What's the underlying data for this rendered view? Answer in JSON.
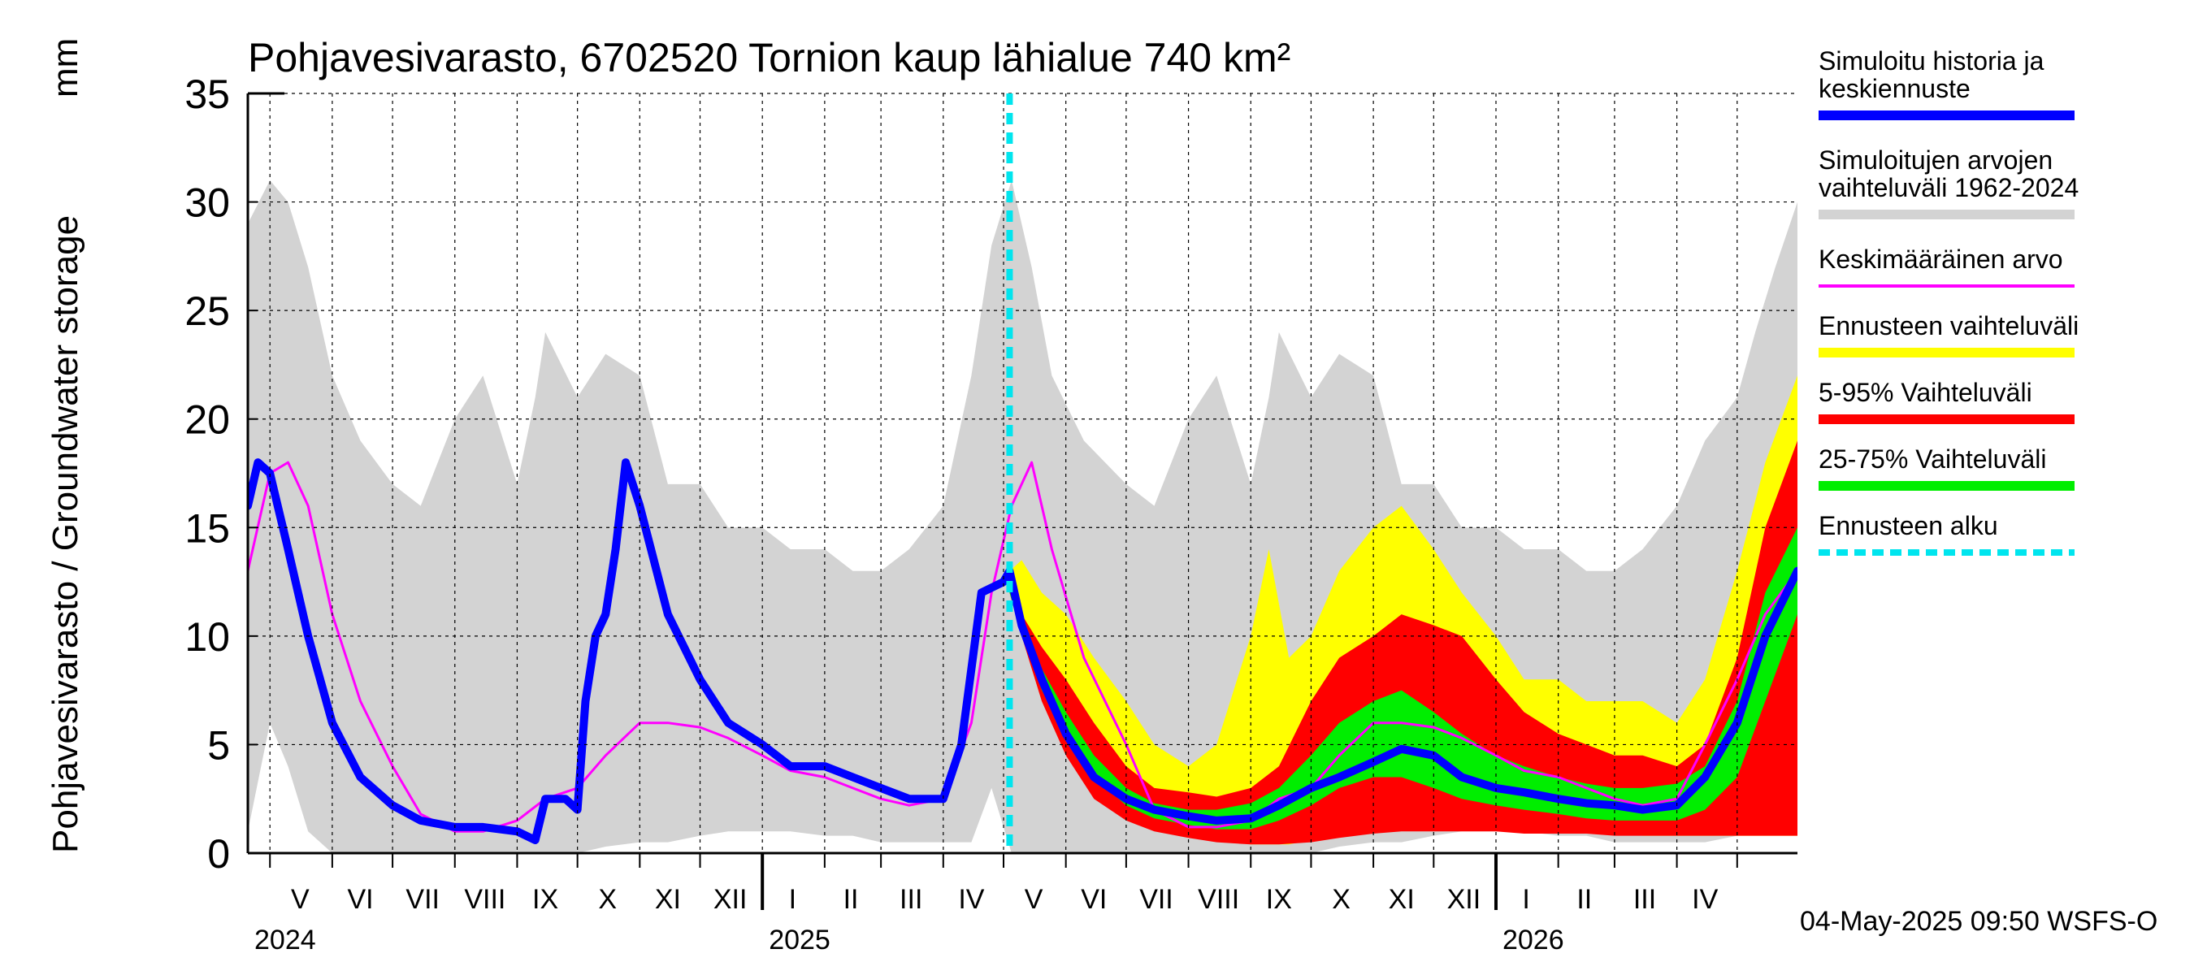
{
  "chart_data": {
    "type": "area",
    "title": "Pohjavesivarasto, 6702520 Tornion kaup lähialue 740 km²",
    "ylabel": "Pohjavesivarasto / Groundwater storage",
    "yunit": "mm",
    "ylim": [
      0,
      35
    ],
    "yticks": [
      "0",
      "5",
      "10",
      "15",
      "20",
      "25",
      "30",
      "35"
    ],
    "xlim": [
      "2024-04-20",
      "2026-05-31"
    ],
    "grid": true,
    "forecast_start": "2025-05-04",
    "months": [
      {
        "label": "V",
        "mid": "2024-05-16"
      },
      {
        "label": "VI",
        "mid": "2024-06-15"
      },
      {
        "label": "VII",
        "mid": "2024-07-16"
      },
      {
        "label": "VIII",
        "mid": "2024-08-16"
      },
      {
        "label": "IX",
        "mid": "2024-09-15"
      },
      {
        "label": "X",
        "mid": "2024-10-16"
      },
      {
        "label": "XI",
        "mid": "2024-11-15"
      },
      {
        "label": "XII",
        "mid": "2024-12-16"
      },
      {
        "label": "I",
        "mid": "2025-01-16"
      },
      {
        "label": "II",
        "mid": "2025-02-14"
      },
      {
        "label": "III",
        "mid": "2025-03-16"
      },
      {
        "label": "IV",
        "mid": "2025-04-15"
      },
      {
        "label": "V",
        "mid": "2025-05-16"
      },
      {
        "label": "VI",
        "mid": "2025-06-15"
      },
      {
        "label": "VII",
        "mid": "2025-07-16"
      },
      {
        "label": "VIII",
        "mid": "2025-08-16"
      },
      {
        "label": "IX",
        "mid": "2025-09-15"
      },
      {
        "label": "X",
        "mid": "2025-10-16"
      },
      {
        "label": "XI",
        "mid": "2025-11-15"
      },
      {
        "label": "XII",
        "mid": "2025-12-16"
      },
      {
        "label": "I",
        "mid": "2026-01-16"
      },
      {
        "label": "II",
        "mid": "2026-02-14"
      },
      {
        "label": "III",
        "mid": "2026-03-16"
      },
      {
        "label": "IV",
        "mid": "2026-04-15"
      }
    ],
    "month_starts": [
      "2024-05-01",
      "2024-06-01",
      "2024-07-01",
      "2024-08-01",
      "2024-09-01",
      "2024-10-01",
      "2024-11-01",
      "2024-12-01",
      "2025-01-01",
      "2025-02-01",
      "2025-03-01",
      "2025-04-01",
      "2025-05-01",
      "2025-06-01",
      "2025-07-01",
      "2025-08-01",
      "2025-09-01",
      "2025-10-01",
      "2025-11-01",
      "2025-12-01",
      "2026-01-01",
      "2026-02-01",
      "2026-03-01",
      "2026-04-01",
      "2026-05-01"
    ],
    "years": [
      {
        "label": "2024",
        "start": "2024-04-20"
      },
      {
        "label": "2025",
        "start": "2025-01-01"
      },
      {
        "label": "2026",
        "start": "2026-01-01"
      }
    ],
    "legend": [
      {
        "label": "Simuloitu historia ja keskiennuste",
        "color": "#0000ff",
        "style": "thick"
      },
      {
        "label": "Simuloitujen arvojen vaihteluväli 1962-2024",
        "color": "#d3d3d3",
        "style": "thick"
      },
      {
        "label": "Keskimääräinen arvo",
        "color": "#ff00ff",
        "style": "thin"
      },
      {
        "label": "Ennusteen vaihteluväli",
        "color": "#ffff00",
        "style": "thick"
      },
      {
        "label": "5-95% Vaihteluväli",
        "color": "#ff0000",
        "style": "thick"
      },
      {
        "label": "25-75% Vaihteluväli",
        "color": "#00ee00",
        "style": "thick"
      },
      {
        "label": "Ennusteen alku",
        "color": "#00e5ee",
        "style": "dashed"
      }
    ],
    "footer": "04-May-2025 09:50 WSFS-O",
    "series": [
      {
        "name": "Simuloitujen arvojen vaihteluväli 1962-2024",
        "kind": "band",
        "color": "#d3d3d3",
        "x": [
          "2024-04-20",
          "2024-05-01",
          "2024-05-10",
          "2024-05-20",
          "2024-06-01",
          "2024-06-15",
          "2024-07-01",
          "2024-07-15",
          "2024-08-01",
          "2024-08-15",
          "2024-09-01",
          "2024-09-10",
          "2024-09-15",
          "2024-10-01",
          "2024-10-15",
          "2024-11-01",
          "2024-11-15",
          "2024-12-01",
          "2024-12-15",
          "2025-01-01",
          "2025-01-15",
          "2025-02-01",
          "2025-02-15",
          "2025-03-01",
          "2025-03-15",
          "2025-04-01",
          "2025-04-15",
          "2025-04-25",
          "2025-05-05",
          "2025-05-15",
          "2025-05-25",
          "2025-06-10",
          "2025-07-01",
          "2025-07-15",
          "2025-08-01",
          "2025-08-15",
          "2025-09-01",
          "2025-09-10",
          "2025-09-15",
          "2025-10-01",
          "2025-10-15",
          "2025-11-01",
          "2025-11-15",
          "2025-12-01",
          "2025-12-15",
          "2026-01-01",
          "2026-01-15",
          "2026-02-01",
          "2026-02-15",
          "2026-03-01",
          "2026-03-15",
          "2026-04-01",
          "2026-04-15",
          "2026-05-01",
          "2026-05-10",
          "2026-05-20",
          "2026-05-31"
        ],
        "upper": [
          29,
          31,
          30,
          27,
          22,
          19,
          17,
          16,
          20,
          22,
          17,
          21,
          24,
          21,
          23,
          22,
          17,
          17,
          15,
          15,
          14,
          14,
          13,
          13,
          14,
          16,
          22,
          28,
          31,
          27,
          22,
          19,
          17,
          16,
          20,
          22,
          17,
          21,
          24,
          21,
          23,
          22,
          17,
          17,
          15,
          15,
          14,
          14,
          13,
          13,
          14,
          16,
          19,
          21,
          24,
          27,
          30
        ],
        "lower": [
          1,
          6,
          4,
          1,
          0,
          0,
          0,
          0,
          0,
          0,
          0,
          0,
          0,
          0,
          0.3,
          0.5,
          0.5,
          0.8,
          1,
          1,
          1,
          0.8,
          0.8,
          0.5,
          0.5,
          0.5,
          0.5,
          3,
          0,
          0,
          0,
          0,
          0,
          0,
          0,
          0,
          0,
          0,
          0,
          0,
          0.3,
          0.5,
          0.5,
          0.8,
          1,
          1,
          1,
          0.8,
          0.8,
          0.5,
          0.5,
          0.5,
          0.5,
          0.8,
          1,
          1.2,
          1.5
        ]
      },
      {
        "name": "Ennusteen vaihteluväli",
        "kind": "band",
        "color": "#ffff00",
        "x": [
          "2025-05-04",
          "2025-05-10",
          "2025-05-20",
          "2025-06-01",
          "2025-06-15",
          "2025-07-01",
          "2025-07-15",
          "2025-08-01",
          "2025-08-15",
          "2025-09-01",
          "2025-09-10",
          "2025-09-20",
          "2025-10-01",
          "2025-10-15",
          "2025-11-01",
          "2025-11-15",
          "2025-12-01",
          "2025-12-15",
          "2026-01-01",
          "2026-01-15",
          "2026-02-01",
          "2026-02-15",
          "2026-03-01",
          "2026-03-15",
          "2026-04-01",
          "2026-04-15",
          "2026-05-01",
          "2026-05-15",
          "2026-05-31"
        ],
        "upper": [
          13,
          13.5,
          12,
          11,
          9,
          7,
          5,
          4,
          5,
          10,
          14,
          9,
          10,
          13,
          15,
          16,
          14,
          12,
          10,
          8,
          8,
          7,
          7,
          7,
          6,
          8,
          13,
          18,
          22
        ],
        "lower": [
          12,
          11,
          8,
          5,
          3,
          2,
          1.2,
          0.8,
          0.6,
          0.4,
          0.4,
          0.4,
          0.6,
          0.8,
          1.0,
          1.2,
          1.2,
          1.2,
          1.2,
          1.0,
          1.0,
          1.0,
          1.0,
          0.8,
          0.8,
          0.8,
          0.8,
          0.8,
          0.8
        ]
      },
      {
        "name": "5-95% Vaihteluväli",
        "kind": "band",
        "color": "#ff0000",
        "x": [
          "2025-05-04",
          "2025-05-10",
          "2025-05-20",
          "2025-06-01",
          "2025-06-15",
          "2025-07-01",
          "2025-07-15",
          "2025-08-01",
          "2025-08-15",
          "2025-09-01",
          "2025-09-15",
          "2025-10-01",
          "2025-10-15",
          "2025-11-01",
          "2025-11-15",
          "2025-12-01",
          "2025-12-15",
          "2026-01-01",
          "2026-01-15",
          "2026-02-01",
          "2026-02-15",
          "2026-03-01",
          "2026-03-15",
          "2026-04-01",
          "2026-04-15",
          "2026-05-01",
          "2026-05-15",
          "2026-05-31"
        ],
        "upper": [
          12.5,
          11,
          9.5,
          8,
          6,
          4,
          3,
          2.8,
          2.6,
          3,
          4,
          7,
          9,
          10,
          11,
          10.5,
          10,
          8,
          6.5,
          5.5,
          5,
          4.5,
          4.5,
          4,
          5,
          9,
          15,
          19
        ],
        "lower": [
          12,
          10,
          7,
          4.5,
          2.5,
          1.5,
          1,
          0.7,
          0.5,
          0.4,
          0.4,
          0.5,
          0.7,
          0.9,
          1.0,
          1.0,
          1.0,
          1.0,
          0.9,
          0.9,
          0.9,
          0.8,
          0.8,
          0.8,
          0.8,
          0.8,
          0.8,
          0.8
        ]
      },
      {
        "name": "25-75% Vaihteluväli",
        "kind": "band",
        "color": "#00ee00",
        "x": [
          "2025-05-04",
          "2025-05-10",
          "2025-05-20",
          "2025-06-01",
          "2025-06-15",
          "2025-07-01",
          "2025-07-15",
          "2025-08-01",
          "2025-08-15",
          "2025-09-01",
          "2025-09-15",
          "2025-10-01",
          "2025-10-15",
          "2025-11-01",
          "2025-11-15",
          "2025-12-01",
          "2025-12-15",
          "2026-01-01",
          "2026-01-15",
          "2026-02-01",
          "2026-02-15",
          "2026-03-01",
          "2026-03-15",
          "2026-04-01",
          "2026-04-15",
          "2026-05-01",
          "2026-05-15",
          "2026-05-31"
        ],
        "upper": [
          12.5,
          10.5,
          8.5,
          6.5,
          4.5,
          3,
          2.3,
          2,
          2,
          2.3,
          3,
          4.5,
          6,
          7,
          7.5,
          6.5,
          5.5,
          4.5,
          4,
          3.5,
          3.2,
          3,
          3,
          3.2,
          4,
          7,
          12,
          15
        ],
        "lower": [
          12,
          10,
          7.5,
          5.5,
          3.5,
          2.2,
          1.6,
          1.3,
          1.1,
          1.1,
          1.5,
          2.2,
          3,
          3.5,
          3.5,
          3,
          2.5,
          2.2,
          2,
          1.8,
          1.6,
          1.5,
          1.5,
          1.5,
          2,
          3.5,
          7,
          11
        ]
      },
      {
        "name": "Keskimääräinen arvo",
        "kind": "line",
        "color": "#ff00ff",
        "width": 3,
        "x": [
          "2024-04-20",
          "2024-05-01",
          "2024-05-10",
          "2024-05-20",
          "2024-06-01",
          "2024-06-15",
          "2024-07-01",
          "2024-07-15",
          "2024-08-01",
          "2024-08-15",
          "2024-09-01",
          "2024-09-15",
          "2024-10-01",
          "2024-10-15",
          "2024-11-01",
          "2024-11-15",
          "2024-12-01",
          "2024-12-15",
          "2025-01-01",
          "2025-01-15",
          "2025-02-01",
          "2025-02-15",
          "2025-03-01",
          "2025-03-15",
          "2025-04-01",
          "2025-04-15",
          "2025-04-25",
          "2025-05-05",
          "2025-05-15",
          "2025-05-25",
          "2025-06-10",
          "2025-07-01",
          "2025-07-15",
          "2025-08-01",
          "2025-08-15",
          "2025-09-01",
          "2025-09-15",
          "2025-10-01",
          "2025-10-15",
          "2025-11-01",
          "2025-11-15",
          "2025-12-01",
          "2025-12-15",
          "2026-01-01",
          "2026-01-15",
          "2026-02-01",
          "2026-02-15",
          "2026-03-01",
          "2026-03-15",
          "2026-04-01",
          "2026-04-15",
          "2026-05-01",
          "2026-05-15",
          "2026-05-31"
        ],
        "y": [
          13,
          17.5,
          18,
          16,
          11,
          7,
          4,
          1.8,
          1.0,
          1.0,
          1.5,
          2.5,
          3.0,
          4.5,
          6.0,
          6.0,
          5.8,
          5.3,
          4.5,
          3.8,
          3.5,
          3.0,
          2.5,
          2.2,
          2.5,
          6,
          12,
          16,
          18,
          14,
          9,
          5,
          2,
          1.2,
          1.2,
          1.5,
          2.5,
          3,
          4.5,
          6,
          6,
          5.8,
          5.3,
          4.5,
          3.8,
          3.5,
          3,
          2.5,
          2.2,
          2.5,
          5,
          8,
          11,
          13
        ]
      },
      {
        "name": "Simuloitu historia ja keskiennuste",
        "kind": "line",
        "color": "#0000ff",
        "width": 10,
        "x": [
          "2024-04-20",
          "2024-04-25",
          "2024-05-01",
          "2024-05-10",
          "2024-05-20",
          "2024-06-01",
          "2024-06-15",
          "2024-07-01",
          "2024-07-15",
          "2024-08-01",
          "2024-08-15",
          "2024-09-01",
          "2024-09-10",
          "2024-09-15",
          "2024-09-20",
          "2024-09-25",
          "2024-10-01",
          "2024-10-05",
          "2024-10-10",
          "2024-10-15",
          "2024-10-20",
          "2024-10-25",
          "2024-11-01",
          "2024-11-15",
          "2024-12-01",
          "2024-12-15",
          "2025-01-01",
          "2025-01-15",
          "2025-02-01",
          "2025-02-15",
          "2025-03-01",
          "2025-03-15",
          "2025-04-01",
          "2025-04-10",
          "2025-04-20",
          "2025-05-01",
          "2025-05-04",
          "2025-05-10",
          "2025-05-20",
          "2025-06-01",
          "2025-06-15",
          "2025-07-01",
          "2025-07-15",
          "2025-08-01",
          "2025-08-15",
          "2025-09-01",
          "2025-09-15",
          "2025-10-01",
          "2025-10-15",
          "2025-11-01",
          "2025-11-15",
          "2025-12-01",
          "2025-12-15",
          "2026-01-01",
          "2026-01-15",
          "2026-02-01",
          "2026-02-15",
          "2026-03-01",
          "2026-03-15",
          "2026-04-01",
          "2026-04-15",
          "2026-05-01",
          "2026-05-15",
          "2026-05-31"
        ],
        "y": [
          16,
          18,
          17.5,
          14,
          10,
          6,
          3.5,
          2.2,
          1.5,
          1.2,
          1.2,
          1.0,
          0.6,
          2.5,
          2.5,
          2.5,
          2.0,
          7,
          10,
          11,
          14,
          18,
          16,
          11,
          8,
          6,
          5,
          4,
          4,
          3.5,
          3.0,
          2.5,
          2.5,
          5,
          12,
          12.5,
          13,
          10.5,
          8,
          5.5,
          3.5,
          2.5,
          2,
          1.7,
          1.5,
          1.6,
          2.2,
          3,
          3.5,
          4.2,
          4.8,
          4.5,
          3.5,
          3,
          2.8,
          2.5,
          2.3,
          2.2,
          2.0,
          2.2,
          3.5,
          6,
          10,
          13
        ]
      }
    ]
  }
}
